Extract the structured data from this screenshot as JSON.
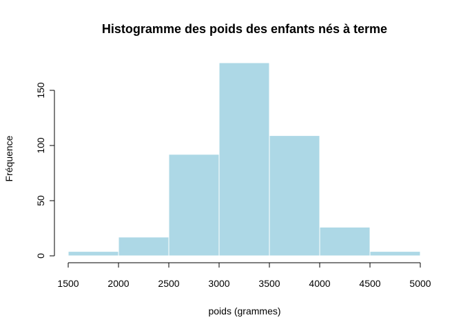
{
  "chart_data": {
    "type": "bar",
    "title": "Histogramme des poids des enfants nés à terme",
    "xlabel": "poids (grammes)",
    "ylabel": "Fréquence",
    "bins": [
      {
        "from": 1500,
        "to": 2000,
        "value": 4
      },
      {
        "from": 2000,
        "to": 2500,
        "value": 17
      },
      {
        "from": 2500,
        "to": 3000,
        "value": 92
      },
      {
        "from": 3000,
        "to": 3500,
        "value": 175
      },
      {
        "from": 3500,
        "to": 4000,
        "value": 109
      },
      {
        "from": 4000,
        "to": 4500,
        "value": 26
      },
      {
        "from": 4500,
        "to": 5000,
        "value": 4
      }
    ],
    "xlim": [
      1500,
      5000
    ],
    "ylim": [
      0,
      175
    ],
    "x_ticks": [
      1500,
      2000,
      2500,
      3000,
      3500,
      4000,
      4500,
      5000
    ],
    "y_ticks": [
      0,
      50,
      100,
      150
    ],
    "bar_color": "#add8e6",
    "grid": false
  }
}
